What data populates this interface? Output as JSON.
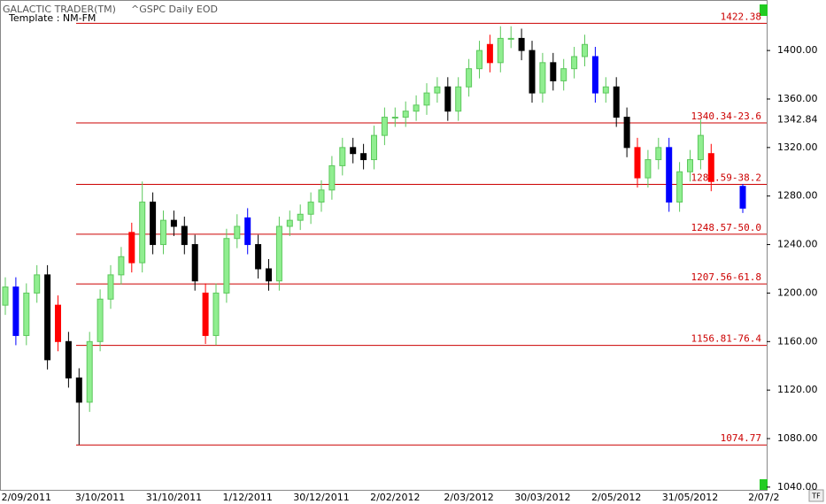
{
  "chart_data": {
    "type": "candlestick",
    "title": "GALACTIC TRADER(TM)",
    "subtitle": "^GSPC Daily EOD",
    "template": "Template : NM-FM",
    "button": "TF",
    "categories": [
      null,
      null,
      "2/09/2011",
      null,
      null,
      null,
      null,
      null,
      null,
      "3/10/2011",
      null,
      null,
      null,
      null,
      null,
      null,
      "31/10/2011",
      null,
      null,
      null,
      null,
      null,
      null,
      "1/12/2011",
      null,
      null,
      null,
      null,
      null,
      null,
      "30/12/2011",
      null,
      null,
      null,
      null,
      null,
      null,
      "2/02/2012",
      null,
      null,
      null,
      null,
      null,
      null,
      "2/03/2012",
      null,
      null,
      null,
      null,
      null,
      null,
      "30/03/2012",
      null,
      null,
      null,
      null,
      null,
      null,
      "2/05/2012",
      null,
      null,
      null,
      null,
      null,
      null,
      "31/05/2012",
      null,
      null,
      null,
      null,
      null,
      null,
      "2/07/2"
    ],
    "open": [
      1190,
      1205,
      1165,
      1200,
      1215,
      1190,
      1160,
      1130,
      1110,
      1160,
      1195,
      1215,
      1250,
      1225,
      1275,
      1240,
      1260,
      1255,
      1240,
      1200,
      1165,
      1200,
      1245,
      1262,
      1240,
      1220,
      1210,
      1255,
      1260,
      1265,
      1275,
      1285,
      1305,
      1320,
      1315,
      1310,
      1330,
      1345,
      1345,
      1350,
      1355,
      1365,
      1370,
      1350,
      1370,
      1385,
      1405,
      1390,
      1410,
      1410,
      1400,
      1365,
      1390,
      1375,
      1385,
      1395,
      1395,
      1365,
      1370,
      1345,
      1320,
      1295,
      1310,
      1320,
      1275,
      1300,
      1310,
      1315,
      null,
      null,
      1288,
      null,
      null
    ],
    "high": [
      1213,
      1213,
      1208,
      1223,
      1223,
      1198,
      1168,
      1138,
      1168,
      1203,
      1223,
      1238,
      1258,
      1292,
      1283,
      1268,
      1268,
      1263,
      1248,
      1208,
      1208,
      1253,
      1265,
      1270,
      1248,
      1228,
      1263,
      1268,
      1273,
      1283,
      1293,
      1313,
      1328,
      1328,
      1323,
      1338,
      1353,
      1353,
      1358,
      1363,
      1373,
      1378,
      1378,
      1378,
      1393,
      1408,
      1413,
      1420,
      1420,
      1418,
      1408,
      1398,
      1398,
      1393,
      1403,
      1413,
      1403,
      1378,
      1378,
      1353,
      1328,
      1318,
      1328,
      1328,
      1308,
      1318,
      1343,
      1323,
      null,
      null,
      1290,
      null,
      null
    ],
    "low": [
      1182,
      1157,
      1157,
      1192,
      1137,
      1152,
      1122,
      1075,
      1102,
      1152,
      1187,
      1207,
      1217,
      1217,
      1232,
      1232,
      1247,
      1232,
      1202,
      1158,
      1157,
      1192,
      1237,
      1232,
      1212,
      1202,
      1202,
      1247,
      1252,
      1257,
      1267,
      1277,
      1297,
      1307,
      1302,
      1302,
      1322,
      1337,
      1337,
      1342,
      1347,
      1357,
      1342,
      1342,
      1362,
      1377,
      1382,
      1382,
      1402,
      1392,
      1357,
      1357,
      1367,
      1367,
      1377,
      1387,
      1357,
      1357,
      1337,
      1312,
      1287,
      1287,
      1302,
      1267,
      1267,
      1292,
      1302,
      1284,
      null,
      null,
      1266,
      null,
      null
    ],
    "close": [
      1205,
      1165,
      1200,
      1215,
      1145,
      1160,
      1130,
      1110,
      1160,
      1195,
      1215,
      1230,
      1225,
      1275,
      1240,
      1260,
      1255,
      1240,
      1210,
      1165,
      1200,
      1245,
      1255,
      1240,
      1220,
      1210,
      1255,
      1260,
      1265,
      1275,
      1285,
      1305,
      1320,
      1315,
      1310,
      1330,
      1345,
      1345,
      1350,
      1355,
      1365,
      1370,
      1350,
      1370,
      1385,
      1400,
      1390,
      1410,
      1410,
      1400,
      1365,
      1390,
      1375,
      1385,
      1395,
      1405,
      1365,
      1370,
      1345,
      1320,
      1295,
      1310,
      1320,
      1275,
      1300,
      1310,
      1330,
      1292,
      null,
      null,
      1270,
      null,
      null
    ],
    "bar_colors": [
      "#90ee90",
      "#0000ff",
      "#90ee90",
      "#90ee90",
      "#000000",
      "#ff0000",
      "#000000",
      "#000000",
      "#90ee90",
      "#90ee90",
      "#90ee90",
      "#90ee90",
      "#ff0000",
      "#90ee90",
      "#000000",
      "#90ee90",
      "#000000",
      "#000000",
      "#000000",
      "#ff0000",
      "#90ee90",
      "#90ee90",
      "#90ee90",
      "#0000ff",
      "#000000",
      "#000000",
      "#90ee90",
      "#90ee90",
      "#90ee90",
      "#90ee90",
      "#90ee90",
      "#90ee90",
      "#90ee90",
      "#000000",
      "#000000",
      "#90ee90",
      "#90ee90",
      "#90ee90",
      "#90ee90",
      "#90ee90",
      "#90ee90",
      "#90ee90",
      "#000000",
      "#90ee90",
      "#90ee90",
      "#90ee90",
      "#ff0000",
      "#90ee90",
      "#90ee90",
      "#000000",
      "#000000",
      "#90ee90",
      "#000000",
      "#90ee90",
      "#90ee90",
      "#90ee90",
      "#0000ff",
      "#90ee90",
      "#000000",
      "#000000",
      "#ff0000",
      "#90ee90",
      "#90ee90",
      "#0000ff",
      "#90ee90",
      "#90ee90",
      "#90ee90",
      "#ff0000",
      null,
      null,
      "#0000ff",
      null,
      null
    ],
    "levels": [
      {
        "value": 1422.38,
        "label": "1422.38"
      },
      {
        "value": 1340.34,
        "label": "1340.34-23.6"
      },
      {
        "value": 1289.59,
        "label": "1289.59-38.2"
      },
      {
        "value": 1248.57,
        "label": "1248.57-50.0"
      },
      {
        "value": 1207.56,
        "label": "1207.56-61.8"
      },
      {
        "value": 1156.81,
        "label": "1156.81-76.4"
      },
      {
        "value": 1074.77,
        "label": "1074.77"
      }
    ],
    "level_color": "#cc0000",
    "last_price": 1342.84,
    "ylim": [
      1037,
      1438
    ],
    "yticks": [
      {
        "value": 1040,
        "label": "1040.00"
      },
      {
        "value": 1080,
        "label": "1080.00"
      },
      {
        "value": 1120,
        "label": "1120.00"
      },
      {
        "value": 1160,
        "label": "1160.00"
      },
      {
        "value": 1200,
        "label": "1200.00"
      },
      {
        "value": 1240,
        "label": "1240.00"
      },
      {
        "value": 1280,
        "label": "1280.00"
      },
      {
        "value": 1320,
        "label": "1320.00"
      },
      {
        "value": 1360,
        "label": "1360.00"
      },
      {
        "value": 1400,
        "label": "1400.00"
      }
    ]
  }
}
